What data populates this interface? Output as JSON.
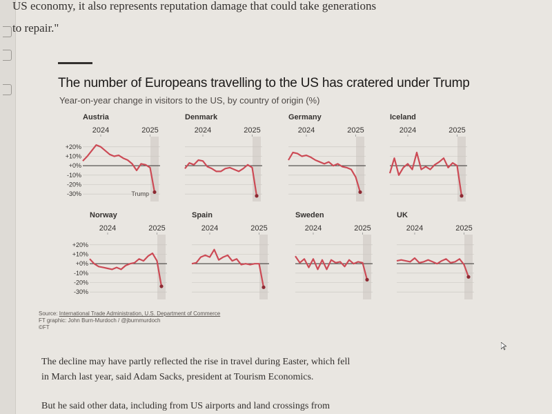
{
  "article": {
    "quote_line1": "US economy, it also represents reputation damage that could take generations",
    "quote_line2": "to repair.\"",
    "para1_line1": "The decline may have partly reflected the rise in travel during Easter, which fell",
    "para1_line2": "in March last year, said Adam Sacks, president at Tourism Economics.",
    "para2_line1": "But he said other data, including from US airports and land crossings from"
  },
  "chart_data": {
    "type": "line",
    "title": "The number of Europeans travelling to the US has cratered under Trump",
    "subtitle": "Year-on-year change in visitors to the US, by country of origin (%)",
    "y_ticks": [
      "+20%",
      "+10%",
      "+0%",
      "-10%",
      "-20%",
      "-30%"
    ],
    "ylim": [
      -35,
      25
    ],
    "annotation": "Trump",
    "source_label": "Source: ",
    "source_text": "International Trade Administration, U.S. Department of Commerce",
    "credit": "FT graphic: John Burn-Murdoch / @jburnmurdoch",
    "copyright": "©FT",
    "accent_color": "#cc4a55",
    "shade_color": "#d4d0ca",
    "panels": [
      {
        "name": "Austria",
        "x_ticks": [
          "2024",
          "2025"
        ],
        "values": [
          5,
          10,
          16,
          22,
          20,
          16,
          12,
          10,
          11,
          8,
          6,
          2,
          -5,
          2,
          1,
          -2,
          -28
        ]
      },
      {
        "name": "Denmark",
        "x_ticks": [
          "2024",
          "2025"
        ],
        "values": [
          -3,
          3,
          1,
          6,
          5,
          -1,
          -3,
          -6,
          -6,
          -3,
          -2,
          -4,
          -6,
          -3,
          1,
          -2,
          -32
        ]
      },
      {
        "name": "Germany",
        "x_ticks": [
          "2024",
          "2025"
        ],
        "values": [
          6,
          14,
          13,
          10,
          11,
          9,
          6,
          4,
          2,
          4,
          0,
          2,
          -1,
          -2,
          -4,
          -12,
          -28
        ]
      },
      {
        "name": "Iceland",
        "x_ticks": [
          "2024",
          "2025"
        ],
        "values": [
          -8,
          8,
          -10,
          -2,
          2,
          -4,
          14,
          -4,
          -1,
          -4,
          1,
          4,
          8,
          -2,
          3,
          0,
          -32
        ]
      },
      {
        "name": "Norway",
        "x_ticks": [
          "2024",
          "2025"
        ],
        "values": [
          5,
          0,
          -3,
          -4,
          -5,
          -6,
          -4,
          -6,
          -2,
          0,
          1,
          5,
          3,
          8,
          11,
          3,
          -24
        ]
      },
      {
        "name": "Spain",
        "x_ticks": [
          "2024",
          "2025"
        ],
        "values": [
          0,
          1,
          7,
          9,
          7,
          15,
          4,
          7,
          9,
          3,
          5,
          -1,
          0,
          -1,
          0,
          0,
          -25
        ]
      },
      {
        "name": "Sweden",
        "x_ticks": [
          "2024",
          "2025"
        ],
        "values": [
          8,
          1,
          5,
          -4,
          5,
          -6,
          4,
          -6,
          4,
          1,
          2,
          -3,
          4,
          0,
          2,
          1,
          -17
        ]
      },
      {
        "name": "UK",
        "x_ticks": [
          "2024",
          "2025"
        ],
        "values": [
          3,
          4,
          3,
          2,
          6,
          1,
          2,
          4,
          2,
          0,
          3,
          5,
          1,
          2,
          5,
          -1,
          -14
        ]
      }
    ]
  }
}
